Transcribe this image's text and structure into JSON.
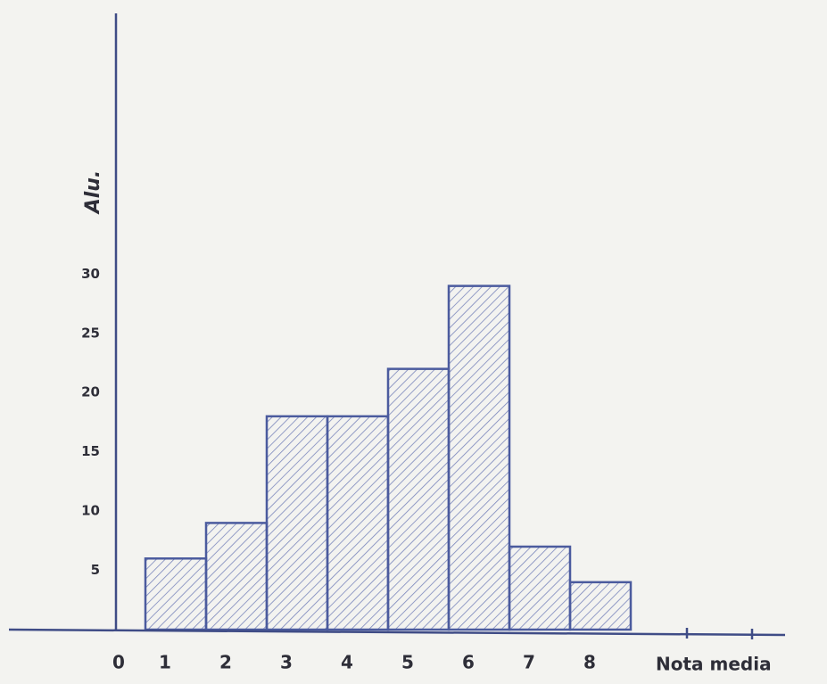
{
  "chart_data": {
    "type": "bar",
    "y_label": "Alu.",
    "x_label": "Nota media",
    "categories": [
      "0",
      "1",
      "2",
      "3",
      "4",
      "5",
      "6",
      "7",
      "8"
    ],
    "values": [
      null,
      6,
      9,
      18,
      18,
      22,
      29,
      7,
      4
    ],
    "color": "#4b5b9e",
    "ylim": [
      0,
      52
    ],
    "yticks": [
      5,
      10,
      15,
      20,
      25,
      30
    ],
    "grid": false
  }
}
